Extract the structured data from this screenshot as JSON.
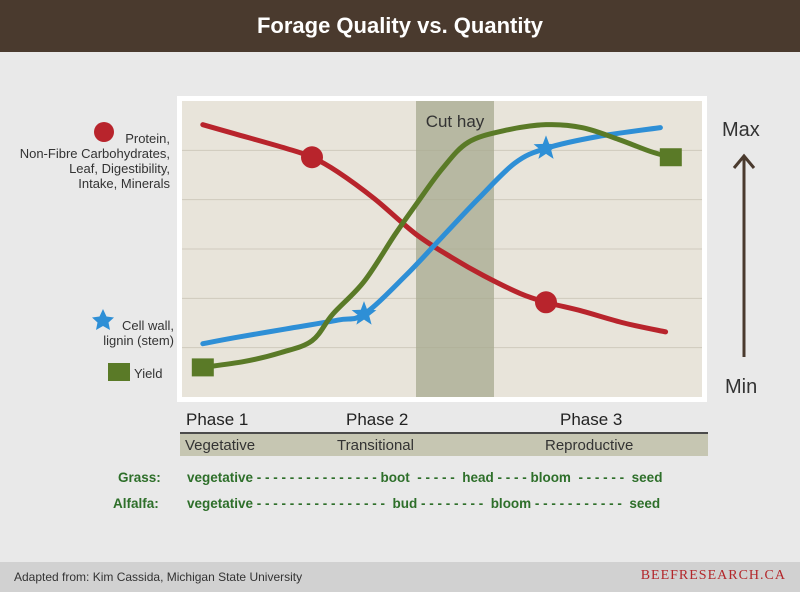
{
  "header": {
    "title": "Forage Quality vs. Quantity"
  },
  "chart_data": {
    "type": "line",
    "title": "Forage Quality vs. Quantity",
    "x_domain": [
      0,
      100
    ],
    "y_domain": [
      0,
      100
    ],
    "y_axis": {
      "max_label": "Max",
      "min_label": "Min"
    },
    "cut_band": {
      "label": "Cut hay",
      "x_start": 45,
      "x_end": 60
    },
    "grid": true,
    "series": [
      {
        "name": "Protein, Non-Fibre Carbohydrates, Leaf, Digestibility, Intake, Minerals",
        "color": "#b8242c",
        "marker": "circle",
        "points": [
          [
            4,
            92
          ],
          [
            10,
            89
          ],
          [
            20,
            84
          ],
          [
            25,
            81
          ],
          [
            30,
            76
          ],
          [
            37,
            67
          ],
          [
            45,
            55
          ],
          [
            52,
            47
          ],
          [
            58,
            41
          ],
          [
            65,
            35
          ],
          [
            70,
            32
          ],
          [
            77,
            29
          ],
          [
            85,
            25
          ],
          [
            93,
            22
          ]
        ],
        "markers": [
          [
            25,
            81
          ],
          [
            70,
            32
          ]
        ]
      },
      {
        "name": "Cell wall, lignin (stem)",
        "color": "#2e8fd6",
        "marker": "star",
        "points": [
          [
            4,
            18
          ],
          [
            10,
            20
          ],
          [
            20,
            23
          ],
          [
            30,
            26
          ],
          [
            35,
            28
          ],
          [
            43,
            41
          ],
          [
            50,
            54
          ],
          [
            57,
            67
          ],
          [
            64,
            79
          ],
          [
            70,
            84
          ],
          [
            80,
            88
          ],
          [
            92,
            91
          ]
        ],
        "markers": [
          [
            35,
            28
          ],
          [
            70,
            84
          ]
        ]
      },
      {
        "name": "Yield",
        "color": "#5a7a27",
        "marker": "square",
        "points": [
          [
            4,
            10
          ],
          [
            12,
            12
          ],
          [
            19,
            15
          ],
          [
            25,
            19
          ],
          [
            29,
            28
          ],
          [
            35,
            39
          ],
          [
            41,
            55
          ],
          [
            45,
            65
          ],
          [
            50,
            77
          ],
          [
            55,
            86
          ],
          [
            62,
            90
          ],
          [
            70,
            92
          ],
          [
            77,
            91
          ],
          [
            84,
            87
          ],
          [
            90,
            83
          ],
          [
            94,
            81
          ]
        ],
        "markers": [
          [
            4,
            10
          ],
          [
            94,
            81
          ]
        ]
      }
    ]
  },
  "legend": {
    "protein_label": "Protein,\nNon-Fibre Carbohydrates,\nLeaf, Digestibility,\nIntake, Minerals",
    "cellwall_label": "Cell wall,\nlignin (stem)",
    "yield_label": "Yield"
  },
  "phases": [
    "Phase 1",
    "Phase 2",
    "Phase 3"
  ],
  "stages": [
    "Vegetative",
    "Transitional",
    "Reproductive"
  ],
  "growth": {
    "grass_label": "Grass:",
    "grass_sequence": "vegetative - - - - - - - - - - - - - - - boot  - - - - -  head - - - - bloom  - - - - - -  seed",
    "alfalfa_label": "Alfalfa:",
    "alfalfa_sequence": "vegetative - - - - - - - - - - - - - - - -  bud - - - - - - - -  bloom - - - - - - - - - - -  seed"
  },
  "footer": {
    "credit": "Adapted from: Kim Cassida, Michigan State University",
    "brand": "BEEFRESEARCH.CA"
  }
}
